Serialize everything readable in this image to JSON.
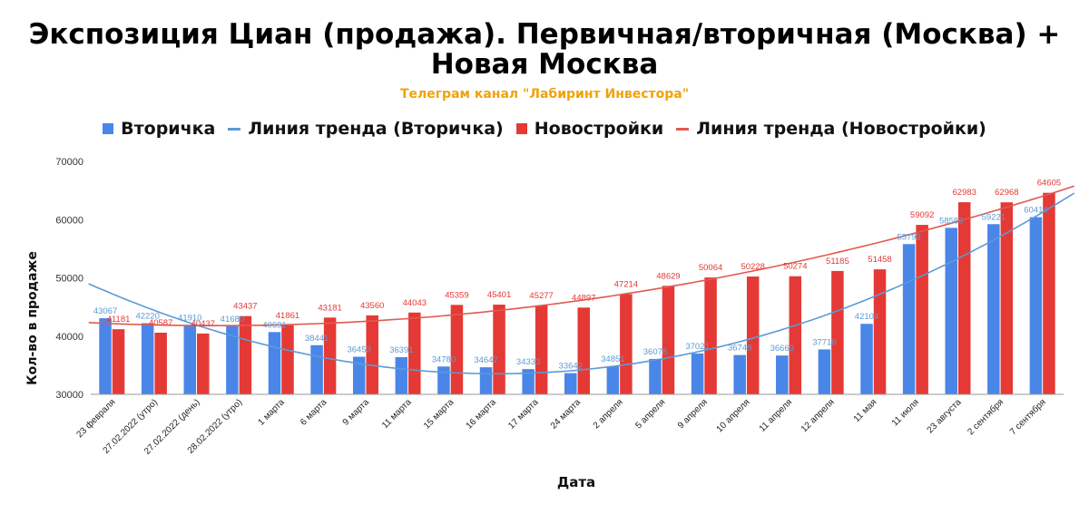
{
  "title_line1": "Экспозиция Циан (продажа). Первичная/вторичная (Москва) +",
  "title_line2": "Новая Москва",
  "subtitle": "Телеграм канал \"Лабиринт Инвестора\"",
  "colors": {
    "secondary": "#4a86e8",
    "new": "#e53935",
    "secondary_trend": "#5b9bd5",
    "new_trend": "#e25950",
    "subtitle": "#f1a20a"
  },
  "chart_data": {
    "type": "bar",
    "title": "Экспозиция Циан (продажа). Первичная/вторичная (Москва) + Новая Москва",
    "xlabel": "Дата",
    "ylabel": "Кол-во в продаже",
    "ylim": [
      30000,
      70000
    ],
    "yticks": [
      "30000",
      "40000",
      "50000",
      "60000",
      "70000"
    ],
    "grid": false,
    "legend_position": "top",
    "categories": [
      "23 февраля",
      "27.02.2022 (утро)",
      "27.02.2022 (день)",
      "28.02.2022 (утро)",
      "1 марта",
      "6 марта",
      "9 марта",
      "11 марта",
      "15 марта",
      "16 марта",
      "17 марта",
      "24 марта",
      "2 апреля",
      "5 апреля",
      "9 апреля",
      "10 апреля",
      "11 апреля",
      "12 апреля",
      "11 мая",
      "11 июля",
      "23 августа",
      "2 сентября",
      "7 сентября"
    ],
    "series": [
      {
        "name": "Вторичка",
        "values": [
          43067,
          42220,
          41910,
          41680,
          40691,
          38441,
          36453,
          36391,
          34780,
          34647,
          34333,
          33642,
          34851,
          36078,
          37021,
          36748,
          36663,
          37716,
          42104,
          55793,
          58585,
          59221,
          60414
        ]
      },
      {
        "name": "Новостройки",
        "values": [
          41181,
          40587,
          40437,
          43437,
          41861,
          43181,
          43560,
          44043,
          45359,
          45401,
          45277,
          44897,
          47214,
          48629,
          50064,
          50228,
          50274,
          51185,
          51458,
          59092,
          62983,
          62968,
          64605
        ]
      }
    ],
    "trendlines": [
      {
        "name": "Линия тренда (Вторичка)",
        "series": "Вторичка",
        "type": "polynomial"
      },
      {
        "name": "Линия тренда (Новостройки)",
        "series": "Новостройки",
        "type": "polynomial"
      }
    ]
  }
}
